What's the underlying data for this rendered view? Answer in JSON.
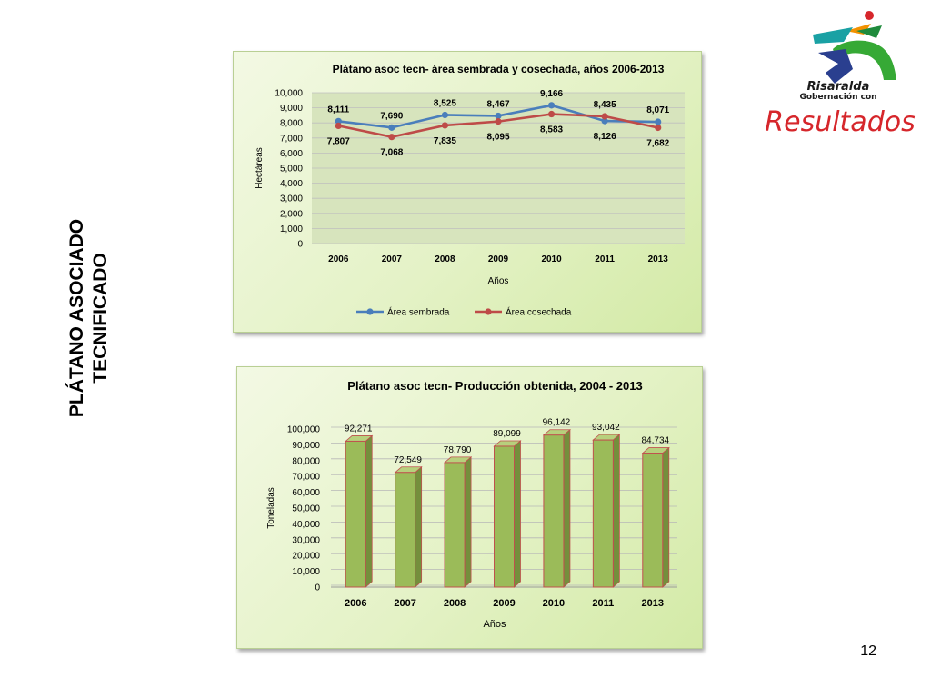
{
  "slide": {
    "side_title_line1": "PLÁTANO ASOCIADO",
    "side_title_line2": "TECNIFICADO",
    "page_number": "12"
  },
  "logo": {
    "line1": "Risaralda",
    "line2": "Gobernación con",
    "line3": "Resultados"
  },
  "chart_data": [
    {
      "type": "line",
      "title": "Plátano asoc tecn- área sembrada y cosechada, años 2006-2013",
      "xlabel": "Años",
      "ylabel": "Hectáreas",
      "categories": [
        "2006",
        "2007",
        "2008",
        "2009",
        "2010",
        "2011",
        "2013"
      ],
      "ylim": [
        0,
        10000
      ],
      "yticks": [
        0,
        1000,
        2000,
        3000,
        4000,
        5000,
        6000,
        7000,
        8000,
        9000,
        10000
      ],
      "ytick_labels": [
        "0",
        "1,000",
        "2,000",
        "3,000",
        "4,000",
        "5,000",
        "6,000",
        "7,000",
        "8,000",
        "9,000",
        "10,000"
      ],
      "series": [
        {
          "name": "Área sembrada",
          "color": "#4a7ebb",
          "values": [
            8111,
            7690,
            8525,
            8467,
            9166,
            8126,
            8071
          ],
          "labels": [
            "8,111",
            "7,690",
            "8,525",
            "8,467",
            "9,166",
            "8,126",
            "8,071"
          ]
        },
        {
          "name": "Área cosechada",
          "color": "#be4b48",
          "values": [
            7807,
            7068,
            7835,
            8095,
            8583,
            8435,
            7682
          ],
          "labels": [
            "7,807",
            "7,068",
            "7,835",
            "8,095",
            "8,583",
            "8,435",
            "7,682"
          ]
        }
      ],
      "legend": "bottom",
      "grid": true,
      "plot_background": "#d7e4bd"
    },
    {
      "type": "bar",
      "title": "Plátano asoc tecn- Producción obtenida, 2004 - 2013",
      "xlabel": "Años",
      "ylabel": "Toneladas",
      "categories": [
        "2006",
        "2007",
        "2008",
        "2009",
        "2010",
        "2011",
        "2013"
      ],
      "values": [
        92271,
        72549,
        78790,
        89099,
        96142,
        93042,
        84734
      ],
      "labels": [
        "92,271",
        "72,549",
        "78,790",
        "89,099",
        "96,142",
        "93,042",
        "84,734"
      ],
      "ylim": [
        0,
        100000
      ],
      "yticks": [
        0,
        10000,
        20000,
        30000,
        40000,
        50000,
        60000,
        70000,
        80000,
        90000,
        100000
      ],
      "ytick_labels": [
        "0",
        "10,000",
        "20,000",
        "30,000",
        "40,000",
        "50,000",
        "60,000",
        "70,000",
        "80,000",
        "90,000",
        "100,000"
      ],
      "bar_color": "#9bbb59",
      "bar_edge_color": "#c0504d",
      "grid": true
    }
  ]
}
